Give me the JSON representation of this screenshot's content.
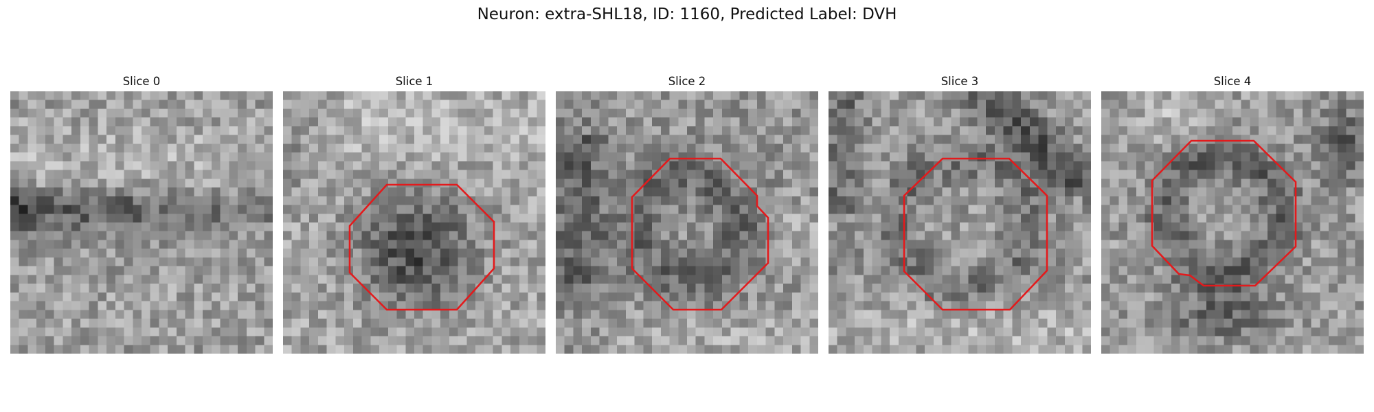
{
  "figure": {
    "title": "Neuron: extra-SHL18, ID: 1160, Predicted Label: DVH"
  },
  "panels": [
    {
      "title": "Slice 0",
      "has_contour": false
    },
    {
      "title": "Slice 1",
      "has_contour": true
    },
    {
      "title": "Slice 2",
      "has_contour": true
    },
    {
      "title": "Slice 3",
      "has_contour": true
    },
    {
      "title": "Slice 4",
      "has_contour": true
    }
  ],
  "colors": {
    "contour": "#e31a1c",
    "background": "#ffffff"
  }
}
